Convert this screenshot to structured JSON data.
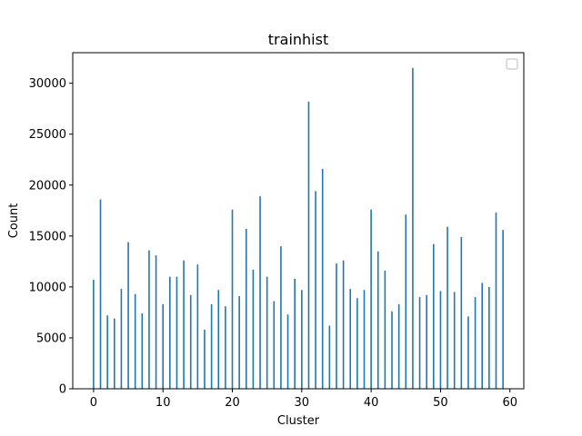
{
  "chart_data": {
    "type": "bar",
    "title": "trainhist",
    "xlabel": "Cluster",
    "ylabel": "Count",
    "xlim": [
      -3,
      62
    ],
    "ylim": [
      0,
      33000
    ],
    "xticks": [
      0,
      10,
      20,
      30,
      40,
      50,
      60
    ],
    "yticks": [
      0,
      5000,
      10000,
      15000,
      20000,
      25000,
      30000
    ],
    "legend": {
      "placement": "top-right",
      "entries": []
    },
    "grid": false,
    "bar_color": "#1f77b4",
    "categories": [
      0,
      1,
      2,
      3,
      4,
      5,
      6,
      7,
      8,
      9,
      10,
      11,
      12,
      13,
      14,
      15,
      16,
      17,
      18,
      19,
      20,
      21,
      22,
      23,
      24,
      25,
      26,
      27,
      28,
      29,
      30,
      31,
      32,
      33,
      34,
      35,
      36,
      37,
      38,
      39,
      40,
      41,
      42,
      43,
      44,
      45,
      46,
      47,
      48,
      49,
      50,
      51,
      52,
      53,
      54,
      55,
      56,
      57,
      58,
      59
    ],
    "values": [
      10700,
      18600,
      7200,
      6900,
      9800,
      14400,
      9300,
      7400,
      13600,
      13100,
      8300,
      11000,
      11000,
      12600,
      9200,
      12200,
      5800,
      8300,
      9700,
      8100,
      17600,
      9100,
      15700,
      11700,
      18900,
      11000,
      8600,
      14000,
      7300,
      10800,
      9700,
      28200,
      19400,
      21600,
      6200,
      12300,
      12600,
      9800,
      8900,
      9700,
      17600,
      13500,
      11600,
      7600,
      8300,
      17100,
      31500,
      9000,
      9200,
      14200,
      9600,
      15900,
      9500,
      14900,
      7100,
      9000,
      10400,
      10000,
      17300,
      15600
    ]
  }
}
